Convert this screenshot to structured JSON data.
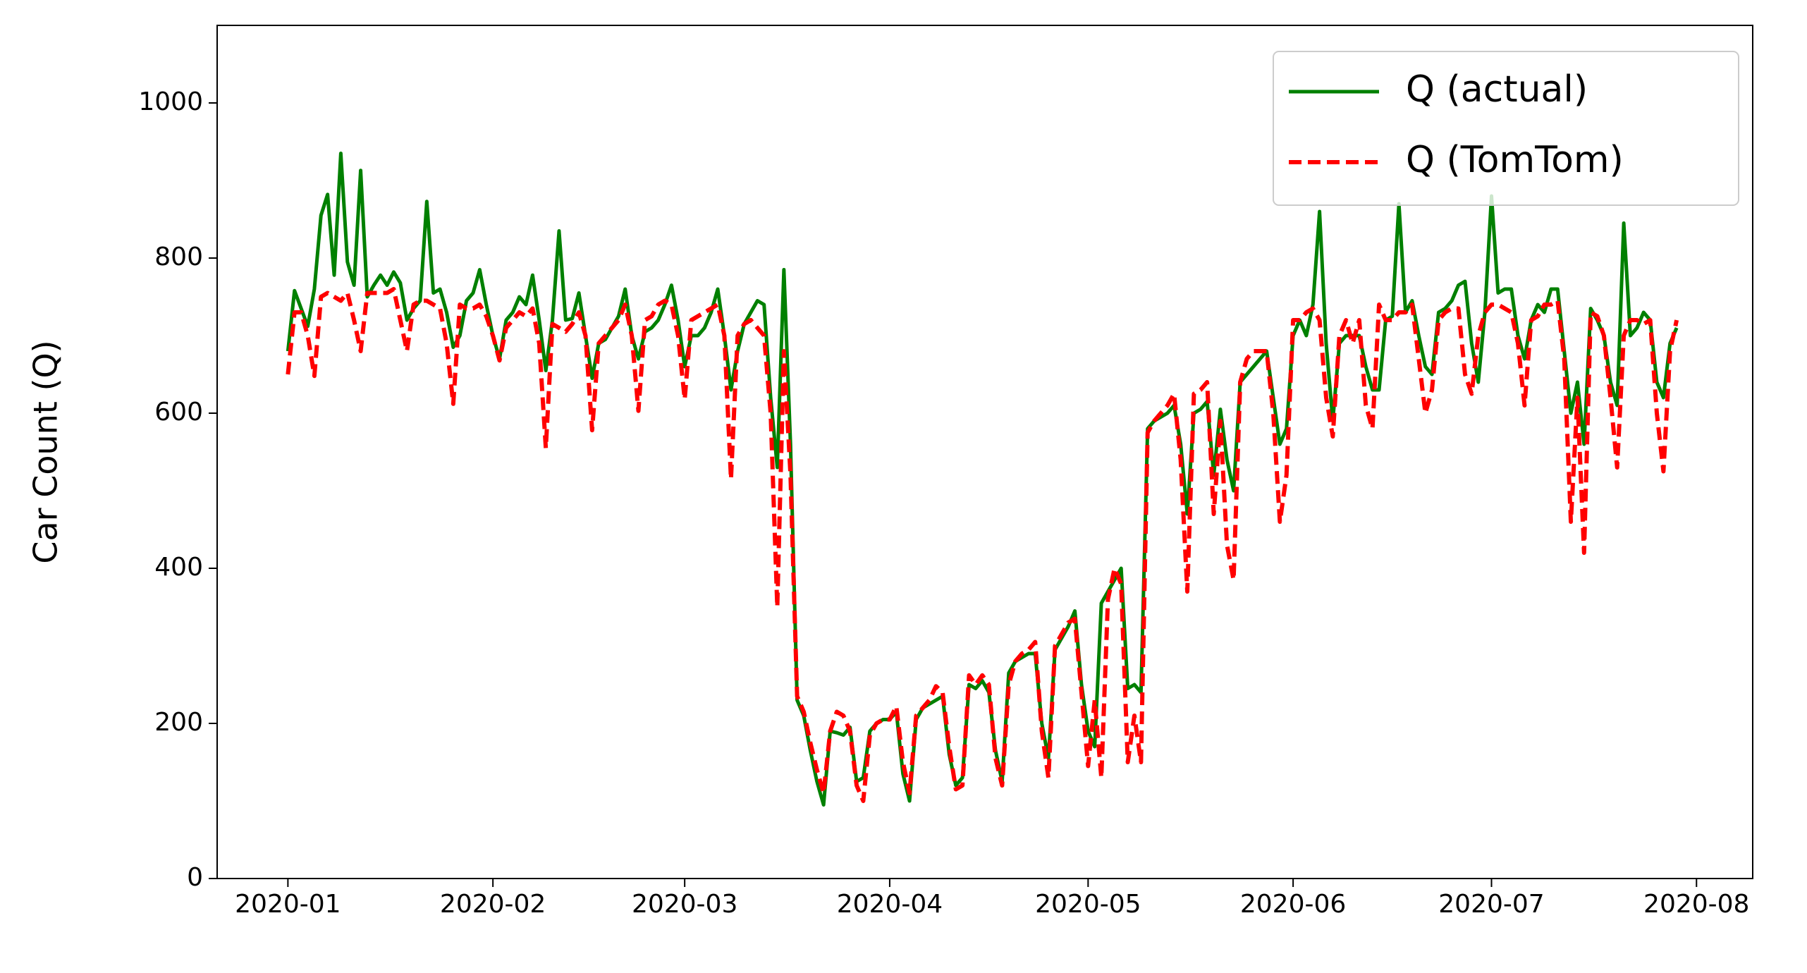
{
  "chart_data": {
    "type": "line",
    "ylabel": "Car Count (Q)",
    "x": [
      0,
      1,
      2,
      3,
      4,
      5,
      6,
      7,
      8,
      9,
      10,
      11,
      12,
      13,
      14,
      15,
      16,
      17,
      18,
      19,
      20,
      21,
      22,
      23,
      24,
      25,
      26,
      27,
      28,
      29,
      30,
      31,
      32,
      33,
      34,
      35,
      36,
      37,
      38,
      39,
      40,
      41,
      42,
      43,
      44,
      45,
      46,
      47,
      48,
      49,
      50,
      51,
      52,
      53,
      54,
      55,
      56,
      57,
      58,
      59,
      60,
      61,
      62,
      63,
      64,
      65,
      66,
      67,
      68,
      69,
      70,
      71,
      72,
      73,
      74,
      75,
      76,
      77,
      78,
      79,
      80,
      81,
      82,
      83,
      84,
      85,
      86,
      87,
      88,
      89,
      90,
      91,
      92,
      93,
      94,
      95,
      96,
      97,
      98,
      99,
      100,
      101,
      102,
      103,
      104,
      105,
      106,
      107,
      108,
      109,
      110,
      111,
      112,
      113,
      114,
      115,
      116,
      117,
      118,
      119,
      120,
      121,
      122,
      123,
      124,
      125,
      126,
      127,
      128,
      129,
      130,
      131,
      132,
      133,
      134,
      135,
      136,
      137,
      138,
      139,
      140,
      141,
      142,
      143,
      144,
      145,
      146,
      147,
      148,
      149,
      150,
      151,
      152,
      153,
      154,
      155,
      156,
      157,
      158,
      159,
      160,
      161,
      162,
      163,
      164,
      165,
      166,
      167,
      168,
      169,
      170,
      171,
      172,
      173,
      174,
      175,
      176,
      177,
      178,
      179,
      180,
      181,
      182,
      183,
      184,
      185,
      186,
      187,
      188,
      189,
      190,
      191,
      192,
      193,
      194,
      195,
      196,
      197,
      198,
      199,
      200,
      201,
      202,
      203,
      204,
      205,
      206,
      207,
      208,
      209,
      210
    ],
    "series": [
      {
        "name": "Q (actual)",
        "color": "#008000",
        "dash": false,
        "values": [
          680,
          758,
          735,
          712,
          760,
          855,
          882,
          778,
          935,
          795,
          765,
          913,
          750,
          765,
          778,
          765,
          782,
          768,
          720,
          735,
          745,
          873,
          755,
          760,
          730,
          685,
          700,
          745,
          755,
          785,
          740,
          700,
          670,
          720,
          730,
          750,
          740,
          778,
          720,
          655,
          720,
          835,
          720,
          722,
          755,
          700,
          645,
          690,
          695,
          710,
          725,
          760,
          700,
          670,
          705,
          710,
          720,
          740,
          765,
          720,
          660,
          700,
          700,
          710,
          730,
          760,
          700,
          630,
          680,
          715,
          730,
          745,
          740,
          620,
          530,
          785,
          560,
          230,
          210,
          165,
          125,
          95,
          190,
          188,
          185,
          195,
          125,
          130,
          190,
          200,
          205,
          205,
          215,
          135,
          100,
          205,
          220,
          225,
          230,
          235,
          160,
          120,
          130,
          250,
          245,
          255,
          240,
          165,
          125,
          265,
          280,
          285,
          290,
          290,
          200,
          155,
          295,
          310,
          325,
          345,
          250,
          190,
          170,
          355,
          370,
          385,
          400,
          245,
          250,
          240,
          580,
          590,
          595,
          600,
          610,
          560,
          470,
          600,
          605,
          615,
          520,
          605,
          540,
          500,
          640,
          650,
          660,
          670,
          680,
          620,
          560,
          580,
          700,
          720,
          700,
          740,
          860,
          690,
          590,
          690,
          700,
          700,
          700,
          660,
          630,
          630,
          720,
          725,
          870,
          730,
          745,
          700,
          660,
          650,
          730,
          735,
          745,
          765,
          770,
          690,
          640,
          730,
          880,
          755,
          760,
          760,
          700,
          670,
          720,
          740,
          730,
          760,
          760,
          680,
          600,
          640,
          560,
          735,
          720,
          700,
          640,
          610,
          845,
          700,
          710,
          730,
          720,
          640,
          620,
          690,
          710
        ]
      },
      {
        "name": "Q (TomTom)",
        "color": "#ff0000",
        "dash": true,
        "values": [
          650,
          730,
          730,
          700,
          648,
          750,
          755,
          750,
          745,
          755,
          720,
          680,
          755,
          755,
          755,
          755,
          760,
          720,
          680,
          740,
          745,
          745,
          740,
          735,
          690,
          612,
          740,
          735,
          735,
          740,
          725,
          700,
          668,
          710,
          720,
          730,
          725,
          735,
          690,
          555,
          715,
          710,
          705,
          715,
          730,
          700,
          578,
          690,
          700,
          710,
          720,
          740,
          700,
          603,
          720,
          725,
          740,
          745,
          740,
          700,
          618,
          720,
          725,
          730,
          735,
          740,
          700,
          515,
          700,
          715,
          720,
          710,
          700,
          600,
          350,
          680,
          520,
          235,
          215,
          175,
          140,
          110,
          190,
          215,
          210,
          190,
          120,
          100,
          185,
          200,
          205,
          205,
          222,
          150,
          110,
          210,
          220,
          230,
          248,
          240,
          170,
          115,
          120,
          262,
          250,
          262,
          250,
          155,
          120,
          250,
          280,
          290,
          295,
          305,
          190,
          130,
          300,
          315,
          330,
          335,
          240,
          145,
          230,
          130,
          360,
          400,
          380,
          150,
          210,
          150,
          575,
          590,
          600,
          610,
          625,
          540,
          370,
          625,
          630,
          640,
          470,
          590,
          430,
          385,
          640,
          670,
          680,
          680,
          680,
          600,
          460,
          520,
          720,
          720,
          730,
          735,
          720,
          620,
          570,
          700,
          720,
          690,
          720,
          610,
          580,
          740,
          720,
          720,
          730,
          730,
          740,
          670,
          600,
          630,
          720,
          730,
          735,
          735,
          650,
          625,
          700,
          730,
          740,
          740,
          735,
          730,
          690,
          610,
          720,
          725,
          740,
          740,
          745,
          670,
          460,
          620,
          420,
          730,
          725,
          700,
          620,
          530,
          700,
          720,
          720,
          715,
          720,
          600,
          525,
          680,
          720
        ]
      }
    ],
    "xlim": [
      -10.7,
      221.5
    ],
    "xticks": [
      {
        "value": 0,
        "label": "2020-01"
      },
      {
        "value": 31,
        "label": "2020-02"
      },
      {
        "value": 60,
        "label": "2020-03"
      },
      {
        "value": 91,
        "label": "2020-04"
      },
      {
        "value": 121,
        "label": "2020-05"
      },
      {
        "value": 152,
        "label": "2020-06"
      },
      {
        "value": 182,
        "label": "2020-07"
      },
      {
        "value": 213,
        "label": "2020-08"
      }
    ],
    "ylim": [
      0,
      1100
    ],
    "yticks": [
      0,
      200,
      400,
      600,
      800,
      1000
    ],
    "legend": "upper right",
    "grid": false
  }
}
